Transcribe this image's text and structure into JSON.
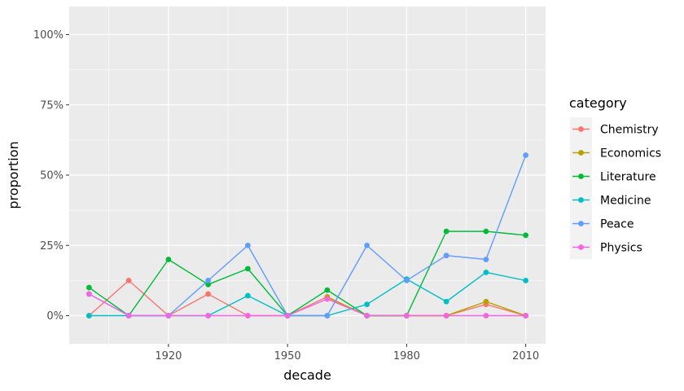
{
  "chart_data": {
    "type": "line",
    "xlabel": "decade",
    "ylabel": "proportion",
    "x": [
      1900,
      1910,
      1920,
      1930,
      1940,
      1950,
      1960,
      1970,
      1980,
      1990,
      2000,
      2010
    ],
    "xlim": [
      1895,
      2015
    ],
    "ylim": [
      -0.1,
      1.1
    ],
    "x_ticks": [
      1920,
      1950,
      1980,
      2010
    ],
    "x_tick_labels": [
      "1920",
      "1950",
      "1980",
      "2010"
    ],
    "y_ticks": [
      0,
      0.25,
      0.5,
      0.75,
      1
    ],
    "y_tick_labels": [
      "0%",
      "25%",
      "50%",
      "75%",
      "100%"
    ],
    "grid": true,
    "legend": {
      "title": "category",
      "position": "right"
    },
    "series": [
      {
        "name": "Chemistry",
        "color": "#F8766D",
        "values": [
          0,
          0.125,
          0,
          0.077,
          0,
          0,
          0.067,
          0,
          0,
          0,
          0.04,
          0
        ]
      },
      {
        "name": "Economics",
        "color": "#B79F00",
        "values": [
          null,
          null,
          null,
          null,
          null,
          null,
          0.065,
          0,
          0,
          0,
          0.05,
          0
        ]
      },
      {
        "name": "Literature",
        "color": "#00BA38",
        "values": [
          0.1,
          0,
          0.2,
          0.111,
          0.167,
          0,
          0.091,
          0,
          0,
          0.3,
          0.3,
          0.286
        ]
      },
      {
        "name": "Medicine",
        "color": "#00BFC4",
        "values": [
          0,
          0,
          0,
          0,
          0.071,
          0,
          0,
          0.04,
          0.13,
          0.05,
          0.154,
          0.125
        ]
      },
      {
        "name": "Peace",
        "color": "#619CFF",
        "values": [
          0.077,
          0,
          0,
          0.125,
          0.25,
          0,
          0,
          0.25,
          0.125,
          0.214,
          0.2,
          0.571
        ]
      },
      {
        "name": "Physics",
        "color": "#F564E3",
        "values": [
          0.077,
          0,
          0,
          0,
          0,
          0,
          0.059,
          0,
          0,
          0,
          0,
          0
        ]
      }
    ]
  }
}
